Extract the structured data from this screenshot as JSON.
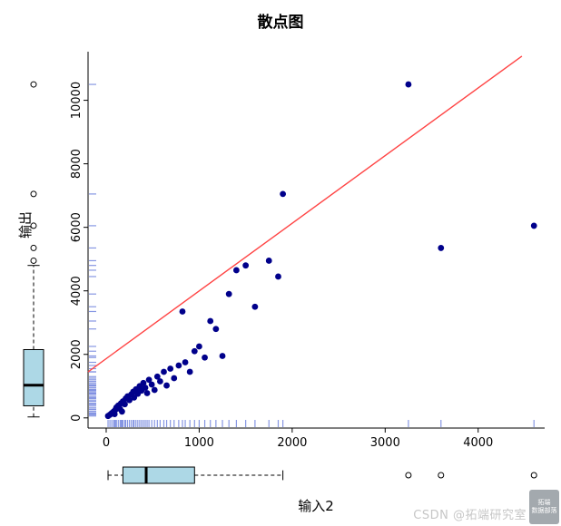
{
  "title": "散点图",
  "x_axis": {
    "label": "输入2",
    "ticks": [
      0,
      1000,
      2000,
      3000,
      4000
    ]
  },
  "y_axis": {
    "label": "输出",
    "ticks": [
      0,
      2000,
      4000,
      6000,
      8000,
      10000
    ]
  },
  "watermark": {
    "text": "CSDN @拓端研究室",
    "logo_line1": "拓端",
    "logo_line2": "数据部落"
  },
  "colors": {
    "point": "#00008B",
    "line": "#ff4444",
    "rug": "#7b8ce0",
    "box_fill": "#add8e6",
    "box_border": "#000000"
  },
  "chart_data": {
    "type": "scatter",
    "title": "散点图",
    "xlabel": "输入2",
    "ylabel": "输出",
    "xlim": [
      -195,
      4715
    ],
    "ylim": [
      -320,
      11530
    ],
    "grid": false,
    "points": [
      [
        20,
        60
      ],
      [
        40,
        100
      ],
      [
        60,
        150
      ],
      [
        80,
        200
      ],
      [
        90,
        120
      ],
      [
        100,
        260
      ],
      [
        110,
        330
      ],
      [
        130,
        390
      ],
      [
        150,
        280
      ],
      [
        160,
        460
      ],
      [
        170,
        200
      ],
      [
        180,
        520
      ],
      [
        200,
        430
      ],
      [
        210,
        610
      ],
      [
        230,
        680
      ],
      [
        250,
        560
      ],
      [
        270,
        740
      ],
      [
        290,
        820
      ],
      [
        300,
        640
      ],
      [
        320,
        900
      ],
      [
        340,
        760
      ],
      [
        360,
        1000
      ],
      [
        380,
        860
      ],
      [
        400,
        1100
      ],
      [
        420,
        950
      ],
      [
        440,
        780
      ],
      [
        460,
        1200
      ],
      [
        490,
        1050
      ],
      [
        520,
        880
      ],
      [
        550,
        1300
      ],
      [
        580,
        1150
      ],
      [
        620,
        1450
      ],
      [
        650,
        1020
      ],
      [
        690,
        1550
      ],
      [
        730,
        1250
      ],
      [
        780,
        1650
      ],
      [
        820,
        3350
      ],
      [
        850,
        1750
      ],
      [
        900,
        1450
      ],
      [
        950,
        2100
      ],
      [
        1000,
        2250
      ],
      [
        1060,
        1900
      ],
      [
        1120,
        3050
      ],
      [
        1180,
        2800
      ],
      [
        1250,
        1950
      ],
      [
        1320,
        3900
      ],
      [
        1400,
        4650
      ],
      [
        1500,
        4800
      ],
      [
        1600,
        3500
      ],
      [
        1750,
        4950
      ],
      [
        1850,
        4450
      ],
      [
        1900,
        7050
      ],
      [
        3250,
        10500
      ],
      [
        3600,
        5350
      ],
      [
        4600,
        6050
      ]
    ],
    "regression_line": {
      "x1": -195,
      "y1": 1450,
      "x2": 4470,
      "y2": 11390
    },
    "x_boxplot": {
      "whisker_low": 20,
      "q1": 180,
      "median": 430,
      "q3": 950,
      "whisker_high": 1900,
      "outliers": [
        3250,
        3600,
        4600
      ]
    },
    "y_boxplot": {
      "whisker_low": 30,
      "q1": 380,
      "median": 1030,
      "q3": 2150,
      "whisker_high": 4800,
      "outliers": [
        4950,
        5350,
        6050,
        7050,
        10500
      ]
    }
  }
}
